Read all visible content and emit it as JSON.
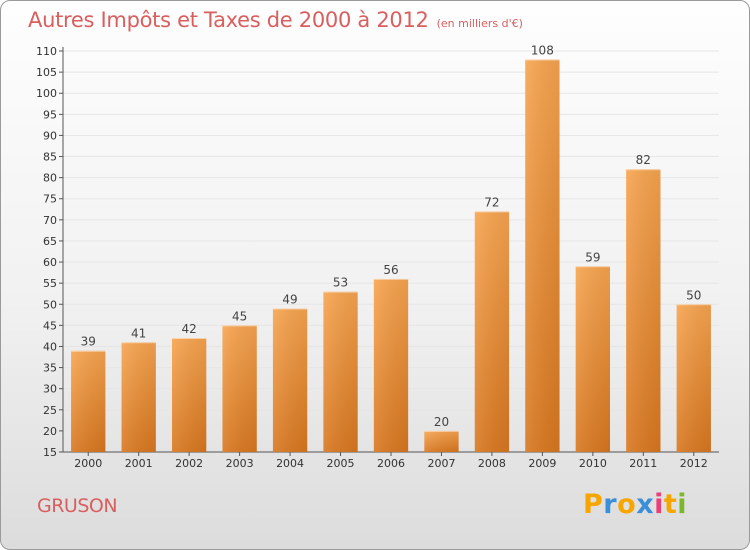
{
  "header": {
    "title": "Autres Impôts et Taxes de 2000 à 2012",
    "subtitle": "(en milliers d'€)"
  },
  "footer": {
    "place": "GRUSON",
    "logo": [
      "P",
      "r",
      "o",
      "x",
      "i",
      "t",
      "i"
    ],
    "logo_colors": [
      "#f7a600",
      "#3a8fd8",
      "#f7a600",
      "#3a8fd8",
      "#e8407a",
      "#f7a600",
      "#7ab829"
    ]
  },
  "colors": {
    "bar_light": "#f7a44f",
    "bar_dark": "#d8771f",
    "accent_text": "#d95f5f",
    "axis": "#555555",
    "grid": "#e6e6e6"
  },
  "chart_data": {
    "type": "bar",
    "categories": [
      "2000",
      "2001",
      "2002",
      "2003",
      "2004",
      "2005",
      "2006",
      "2007",
      "2008",
      "2009",
      "2010",
      "2011",
      "2012"
    ],
    "values": [
      39,
      41,
      42,
      45,
      49,
      53,
      56,
      20,
      72,
      108,
      59,
      82,
      50
    ],
    "ylim": [
      15,
      110
    ],
    "yticks": [
      15,
      20,
      25,
      30,
      35,
      40,
      45,
      50,
      55,
      60,
      65,
      70,
      75,
      80,
      85,
      90,
      95,
      100,
      105,
      110
    ],
    "grid": true
  }
}
